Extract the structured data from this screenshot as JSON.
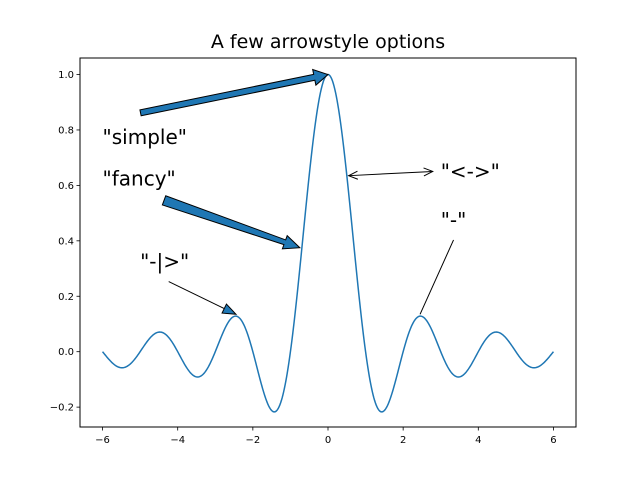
{
  "chart_data": {
    "type": "line",
    "title": "A few arrowstyle options",
    "xlabel": "",
    "ylabel": "",
    "xlim": [
      -6.6,
      6.6
    ],
    "ylim": [
      -0.2717,
      1.0596
    ],
    "xticks": [
      -6,
      -4,
      -2,
      0,
      2,
      4,
      6
    ],
    "xtick_labels": [
      "−6",
      "−4",
      "−2",
      "0",
      "2",
      "4",
      "6"
    ],
    "yticks": [
      -0.2,
      0.0,
      0.2,
      0.4,
      0.6,
      0.8,
      1.0
    ],
    "ytick_labels": [
      "−0.2",
      "0.0",
      "0.2",
      "0.4",
      "0.6",
      "0.8",
      "1.0"
    ],
    "grid": false,
    "legend": "none",
    "line_color": "#1f77b4",
    "series": [
      {
        "function": "sin(pi*x)/(pi*x)",
        "x_range": [
          -6,
          6
        ],
        "samples": [
          [
            -6,
            0.0
          ],
          [
            -5.5,
            -0.058
          ],
          [
            -5,
            0.0
          ],
          [
            -4.5,
            0.071
          ],
          [
            -4,
            0.0
          ],
          [
            -3.5,
            -0.091
          ],
          [
            -3,
            0.0
          ],
          [
            -2.5,
            0.127
          ],
          [
            -2,
            0.0
          ],
          [
            -1.5,
            -0.212
          ],
          [
            -1,
            0.0
          ],
          [
            -0.5,
            0.637
          ],
          [
            0,
            1.0
          ],
          [
            0.5,
            0.637
          ],
          [
            1,
            0.0
          ],
          [
            1.5,
            -0.212
          ],
          [
            2,
            0.0
          ],
          [
            2.5,
            0.127
          ],
          [
            3,
            0.0
          ],
          [
            3.5,
            -0.091
          ],
          [
            4,
            0.0
          ],
          [
            4.5,
            0.071
          ],
          [
            5,
            0.0
          ],
          [
            5.5,
            -0.058
          ],
          [
            6,
            0.0
          ]
        ]
      }
    ],
    "annotations": [
      {
        "label": "\"simple\"",
        "style": "simple",
        "text_xy": [
          -6,
          0.75
        ],
        "target_xy": [
          0,
          1.0
        ]
      },
      {
        "label": "\"fancy\"",
        "style": "fancy",
        "text_xy": [
          -6,
          0.6
        ],
        "target_xy": [
          -0.75,
          0.375
        ]
      },
      {
        "label": "\"-|>\"",
        "style": "-|>",
        "text_xy": [
          -5,
          0.3
        ],
        "target_xy": [
          -2.45,
          0.135
        ]
      },
      {
        "label": "\"<->\"",
        "style": "<->",
        "text_xy": [
          3,
          0.625
        ],
        "target_xy": [
          0.55,
          0.635
        ]
      },
      {
        "label": "\"-\"",
        "style": "-",
        "text_xy": [
          3,
          0.45
        ],
        "target_xy": [
          2.45,
          0.135
        ]
      }
    ]
  }
}
